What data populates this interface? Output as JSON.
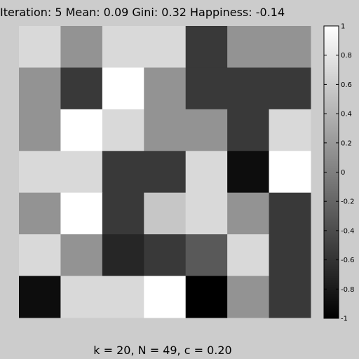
{
  "chart_data": {
    "type": "heatmap",
    "title": "Iteration: 5   Mean: 0.09   Gini: 0.32   Happiness: -0.14",
    "subtitle": "k = 20, N = 49, c = 0.20",
    "rows": 7,
    "cols": 7,
    "values": [
      [
        0.7,
        0.15,
        0.7,
        0.7,
        -0.55,
        0.15,
        0.15
      ],
      [
        0.15,
        -0.55,
        1.0,
        0.15,
        -0.55,
        -0.55,
        -0.55
      ],
      [
        0.15,
        1.0,
        0.7,
        0.15,
        0.15,
        -0.55,
        0.7
      ],
      [
        0.7,
        0.7,
        -0.55,
        -0.55,
        0.7,
        -0.9,
        1.0
      ],
      [
        0.15,
        1.0,
        -0.55,
        0.55,
        0.7,
        0.15,
        -0.55
      ],
      [
        0.7,
        0.15,
        -0.7,
        -0.55,
        -0.3,
        0.7,
        -0.55
      ],
      [
        -0.9,
        0.7,
        0.7,
        1.0,
        -1.0,
        0.15,
        -0.55
      ]
    ],
    "colormap": "gray",
    "colorbar": {
      "range": [
        -1,
        1
      ],
      "ticks": [
        "1",
        "0.8",
        "0.6",
        "0.4",
        "0.2",
        "0",
        "-0.2",
        "-0.4",
        "-0.6",
        "-0.8",
        "-1"
      ]
    }
  }
}
